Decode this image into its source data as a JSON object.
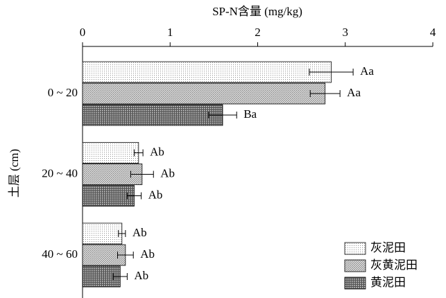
{
  "chart_data": {
    "type": "bar",
    "orientation": "horizontal",
    "x_label": "SP-N含量 (mg/kg)",
    "y_label": "土层 (cm)",
    "categories": [
      "0 ~ 20",
      "20 ~ 40",
      "40 ~ 60"
    ],
    "xlim": [
      0,
      4
    ],
    "xticks": [
      0,
      1,
      2,
      3,
      4
    ],
    "series": [
      {
        "name": "灰泥田",
        "pattern": "dots",
        "values": [
          2.84,
          0.64,
          0.45
        ],
        "errors": [
          0.25,
          0.05,
          0.04
        ],
        "letters": [
          "Aa",
          "Ab",
          "Ab"
        ]
      },
      {
        "name": "灰黄泥田",
        "pattern": "diagonal",
        "values": [
          2.77,
          0.68,
          0.49
        ],
        "errors": [
          0.17,
          0.13,
          0.09
        ],
        "letters": [
          "Aa",
          "Ab",
          "Ab"
        ]
      },
      {
        "name": "黄泥田",
        "pattern": "grid",
        "values": [
          1.6,
          0.59,
          0.43
        ],
        "errors": [
          0.16,
          0.08,
          0.08
        ],
        "letters": [
          "Ba",
          "Ab",
          "Ab"
        ]
      }
    ],
    "legend": "lower right"
  }
}
